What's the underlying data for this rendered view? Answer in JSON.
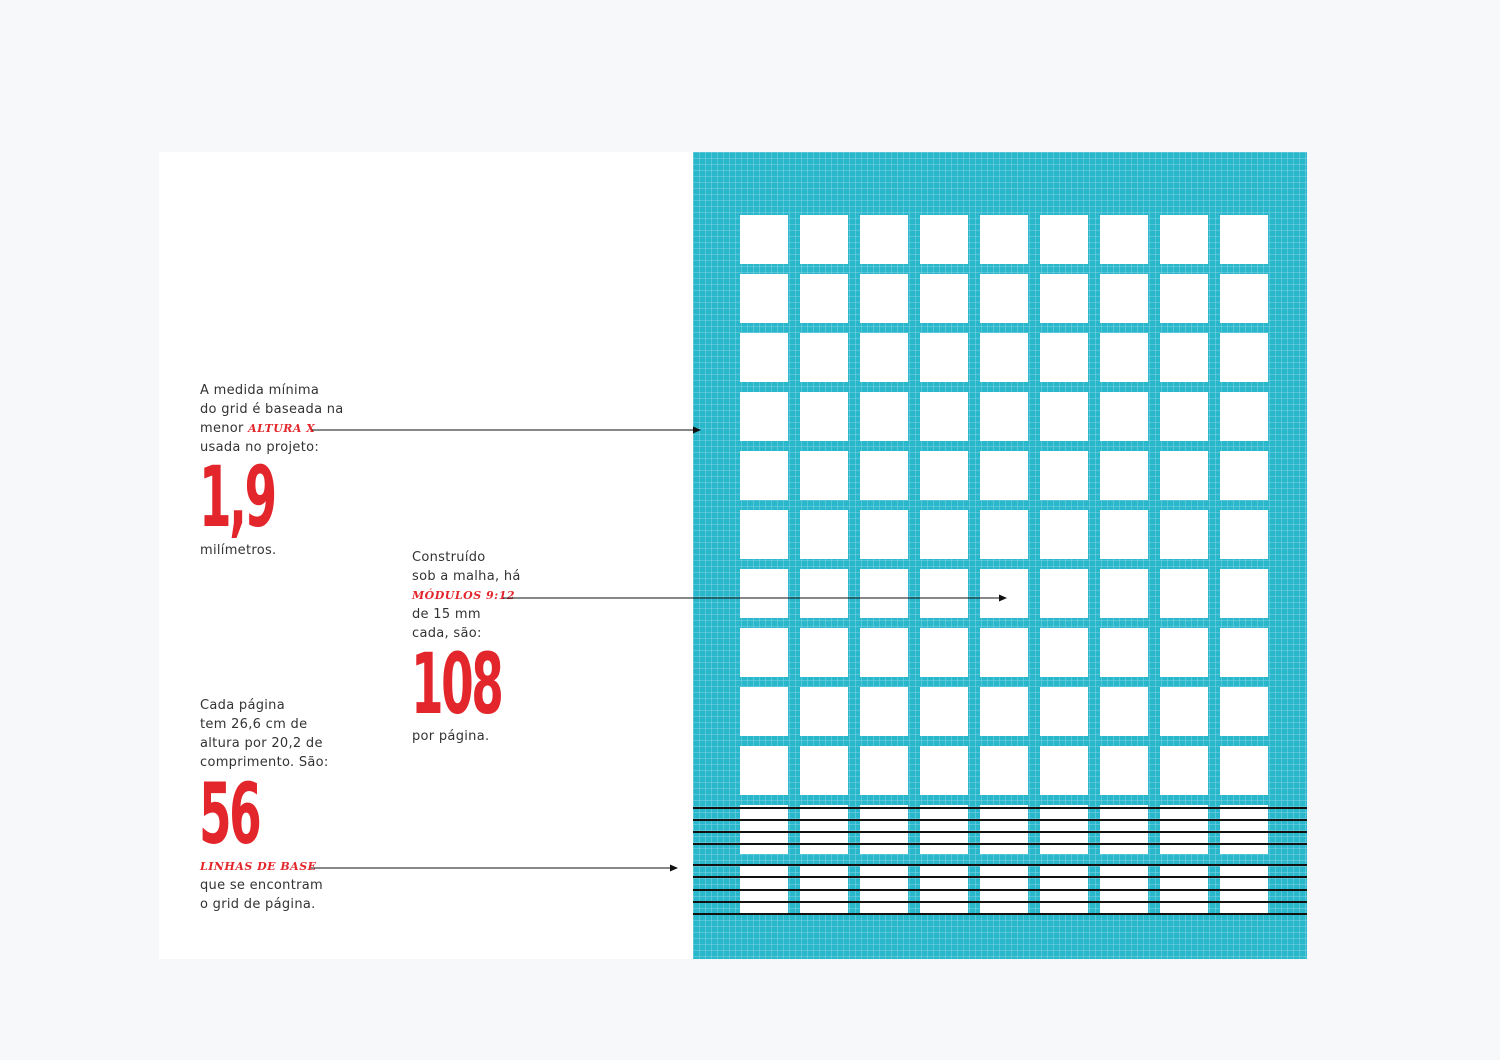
{
  "colors": {
    "accent": "#e3262b",
    "grid_teal": "#29b7cc",
    "grid_cell": "#ffffff",
    "page": "#ffffff",
    "background": "#f7f8fa",
    "baseline": "#111111"
  },
  "blocks": {
    "x_height": {
      "line1": "A medida mínima",
      "line2": "do grid é baseada na",
      "line3_pre": "menor",
      "accent": "ALTURA X",
      "line4": "usada no projeto:",
      "number": "1,9",
      "after": "milímetros."
    },
    "modules": {
      "line1": "Construído",
      "line2": "sob a malha, há",
      "accent": "MÓDULOS 9:12",
      "line4": "de 15 mm",
      "line5": "cada, são:",
      "number": "108",
      "after": "por página."
    },
    "baselines": {
      "line1": "Cada página",
      "line2": "tem 26,6 cm de",
      "line3": "altura por 20,2 de",
      "line4": "comprimento. São:",
      "number": "56",
      "accent": "LINHAS DE BASE",
      "line6": "que se encontram",
      "line7": "o grid de página."
    }
  },
  "module_grid": {
    "columns": 9,
    "rows": 12,
    "baseline_rows_drawn": 9
  }
}
